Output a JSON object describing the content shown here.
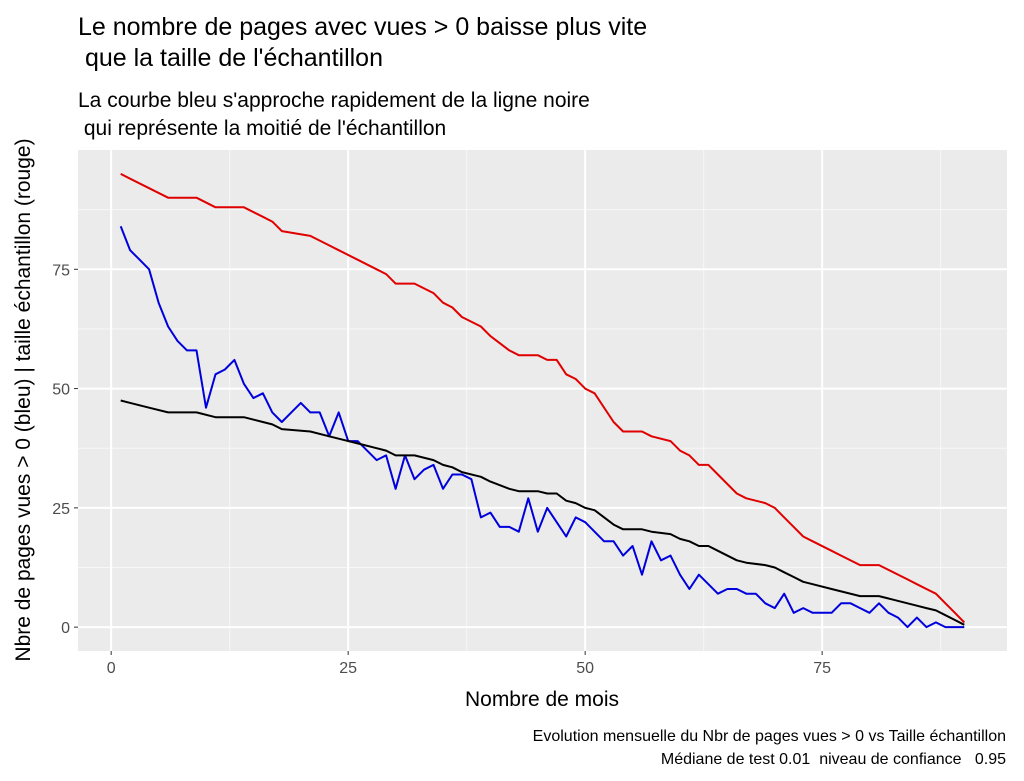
{
  "chart_data": {
    "type": "line",
    "title": [
      "Le nombre de pages avec vues > 0 baisse plus vite",
      " que la taille de l'échantillon"
    ],
    "subtitle": [
      "La courbe bleu s'approche rapidement de la ligne noire",
      " qui représente la moitié de l'échantillon"
    ],
    "xlabel": "Nombre de mois",
    "ylabel": "Nbre de pages vues > 0 (bleu) | taille échantillon (rouge)",
    "caption": [
      "Evolution mensuelle du Nbr de pages vues > 0 vs Taille échantillon",
      "Médiane de test 0.01  niveau de confiance   0.95"
    ],
    "xlim": [
      -3.5,
      94.5
    ],
    "ylim": [
      -5,
      100
    ],
    "x_ticks": [
      0,
      25,
      50,
      75
    ],
    "x_tick_labels": [
      "0",
      "25",
      "50",
      "75"
    ],
    "y_ticks": [
      0,
      25,
      50,
      75
    ],
    "y_tick_labels": [
      "0",
      "25",
      "50",
      "75"
    ],
    "grid": true,
    "legend": "none",
    "series": [
      {
        "color": "#e00000",
        "x": [
          1,
          4,
          6,
          9,
          11,
          14,
          16,
          17,
          18,
          21,
          23,
          24,
          26,
          28,
          29,
          30,
          32,
          34,
          35,
          36,
          37,
          39,
          40,
          42,
          43,
          45,
          46,
          47,
          48,
          49,
          50,
          51,
          53,
          54,
          56,
          57,
          59,
          60,
          61,
          62,
          63,
          64,
          66,
          67,
          69,
          70,
          71,
          72,
          73,
          74,
          76,
          77,
          79,
          80,
          81,
          82,
          84,
          85,
          86,
          87,
          88,
          89,
          90
        ],
        "values": [
          95,
          92,
          90,
          90,
          88,
          88,
          86,
          85,
          83,
          82,
          80,
          79,
          77,
          75,
          74,
          72,
          72,
          70,
          68,
          67,
          65,
          63,
          61,
          58,
          57,
          57,
          56,
          56,
          53,
          52,
          50,
          49,
          43,
          41,
          41,
          40,
          39,
          37,
          36,
          34,
          34,
          32,
          28,
          27,
          26,
          25,
          23,
          21,
          19,
          18,
          16,
          15,
          13,
          13,
          13,
          12,
          10,
          9,
          8,
          7,
          5,
          3,
          1
        ]
      },
      {
        "color": "#0000dd",
        "x": [
          1,
          2,
          3,
          4,
          5,
          6,
          7,
          8,
          9,
          10,
          11,
          12,
          13,
          14,
          15,
          16,
          17,
          18,
          19,
          20,
          21,
          22,
          23,
          24,
          25,
          26,
          27,
          28,
          29,
          30,
          31,
          32,
          33,
          34,
          35,
          36,
          37,
          38,
          39,
          40,
          41,
          42,
          43,
          44,
          45,
          46,
          47,
          48,
          49,
          50,
          51,
          52,
          53,
          54,
          55,
          56,
          57,
          58,
          59,
          60,
          61,
          62,
          63,
          64,
          65,
          66,
          67,
          68,
          69,
          70,
          71,
          72,
          73,
          74,
          75,
          76,
          77,
          78,
          79,
          80,
          81,
          82,
          83,
          84,
          85,
          86,
          87,
          88,
          89,
          90
        ],
        "values": [
          84,
          79,
          77,
          75,
          68,
          63,
          60,
          58,
          58,
          46,
          53,
          54,
          56,
          51,
          48,
          49,
          45,
          43,
          45,
          47,
          45,
          45,
          40,
          45,
          39,
          39,
          37,
          35,
          36,
          29,
          36,
          31,
          33,
          34,
          29,
          32,
          32,
          31,
          23,
          24,
          21,
          21,
          20,
          27,
          20,
          25,
          22,
          19,
          23,
          22,
          20,
          18,
          18,
          15,
          17,
          11,
          18,
          14,
          15,
          11,
          8,
          11,
          9,
          7,
          8,
          8,
          7,
          7,
          5,
          4,
          7,
          3,
          4,
          3,
          3,
          3,
          5,
          5,
          4,
          3,
          5,
          3,
          2,
          0,
          2,
          0,
          1,
          0,
          0,
          0
        ]
      },
      {
        "color": "#000000",
        "x": [
          1,
          4,
          6,
          9,
          11,
          14,
          16,
          17,
          18,
          21,
          23,
          24,
          26,
          28,
          29,
          30,
          32,
          34,
          35,
          36,
          37,
          39,
          40,
          42,
          43,
          45,
          46,
          47,
          48,
          49,
          50,
          51,
          53,
          54,
          56,
          57,
          59,
          60,
          61,
          62,
          63,
          64,
          66,
          67,
          69,
          70,
          71,
          72,
          73,
          74,
          76,
          77,
          79,
          80,
          81,
          82,
          84,
          85,
          86,
          87,
          88,
          89,
          90
        ],
        "values": [
          47.5,
          46,
          45,
          45,
          44,
          44,
          43,
          42.5,
          41.5,
          41,
          40,
          39.5,
          38.5,
          37.5,
          37,
          36,
          36,
          35,
          34,
          33.5,
          32.5,
          31.5,
          30.5,
          29,
          28.5,
          28.5,
          28,
          28,
          26.5,
          26,
          25,
          24.5,
          21.5,
          20.5,
          20.5,
          20,
          19.5,
          18.5,
          18,
          17,
          17,
          16,
          14,
          13.5,
          13,
          12.5,
          11.5,
          10.5,
          9.5,
          9,
          8,
          7.5,
          6.5,
          6.5,
          6.5,
          6,
          5,
          4.5,
          4,
          3.5,
          2.5,
          1.5,
          0.5
        ]
      }
    ]
  }
}
